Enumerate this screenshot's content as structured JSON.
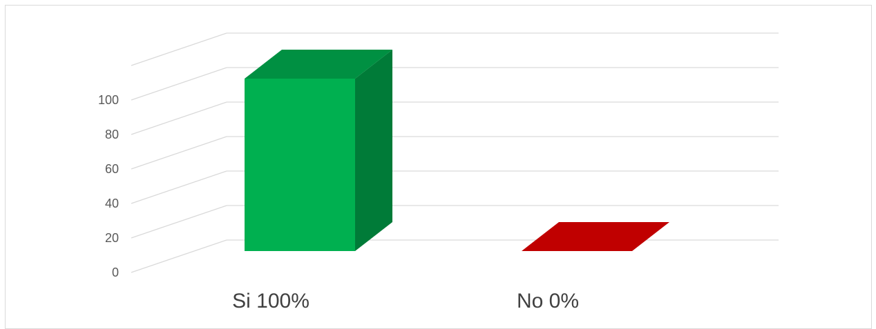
{
  "chart_data": {
    "type": "bar",
    "title": "",
    "xlabel": "",
    "ylabel": "",
    "ylim": [
      0,
      120
    ],
    "y_ticks": [
      0,
      20,
      40,
      60,
      80,
      100
    ],
    "categories": [
      "Si  100%",
      "No  0%"
    ],
    "values": [
      100,
      0
    ],
    "colors": [
      "#00b050",
      "#c00000"
    ],
    "grid": true,
    "style": "3d-column",
    "legend": "none"
  }
}
